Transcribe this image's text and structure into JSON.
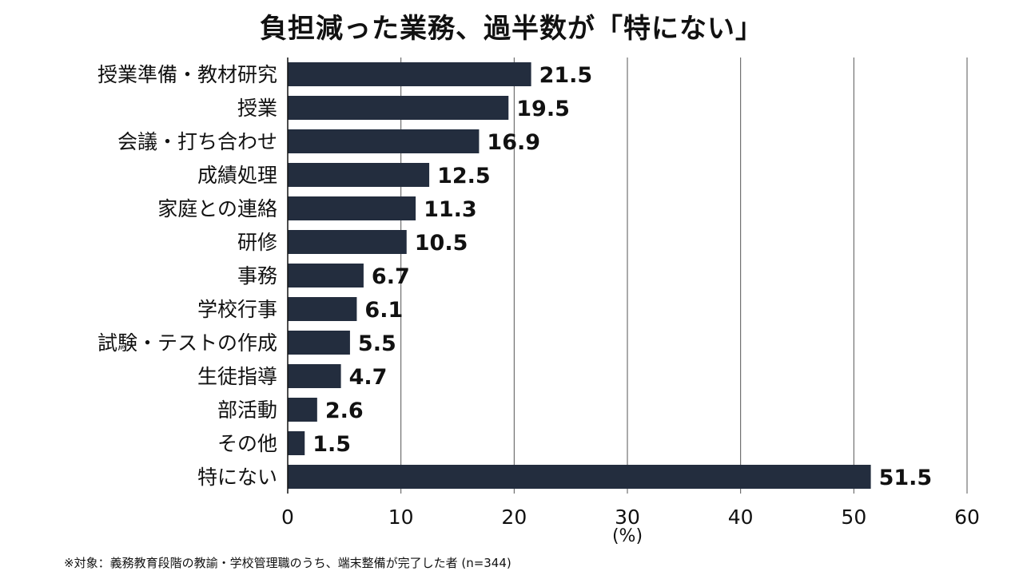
{
  "chart_data": {
    "type": "bar",
    "orientation": "horizontal",
    "title": "負担減った業務、過半数が「特にない」",
    "categories": [
      "授業準備・教材研究",
      "授業",
      "会議・打ち合わせ",
      "成績処理",
      "家庭との連絡",
      "研修",
      "事務",
      "学校行事",
      "試験・テストの作成",
      "生徒指導",
      "部活動",
      "その他",
      "特にない"
    ],
    "values": [
      21.5,
      19.5,
      16.9,
      12.5,
      11.3,
      10.5,
      6.7,
      6.1,
      5.5,
      4.7,
      2.6,
      1.5,
      51.5
    ],
    "value_labels": [
      "21.5",
      "19.5",
      "16.9",
      "12.5",
      "11.3",
      "10.5",
      "6.7",
      "6.1",
      "5.5",
      "4.7",
      "2.6",
      "1.5",
      "51.5"
    ],
    "xlim": [
      0,
      60
    ],
    "xticks": [
      "0",
      "10",
      "20",
      "30",
      "40",
      "50",
      "60"
    ],
    "xtick_values": [
      0,
      10,
      20,
      30,
      40,
      50,
      60
    ],
    "xlabel": "(%)",
    "grid": true,
    "bar_color": "#232d3e",
    "footnote": "※対象：義務教育段階の教諭・学校管理職のうち、端末整備が完了した者 (n=344)"
  }
}
